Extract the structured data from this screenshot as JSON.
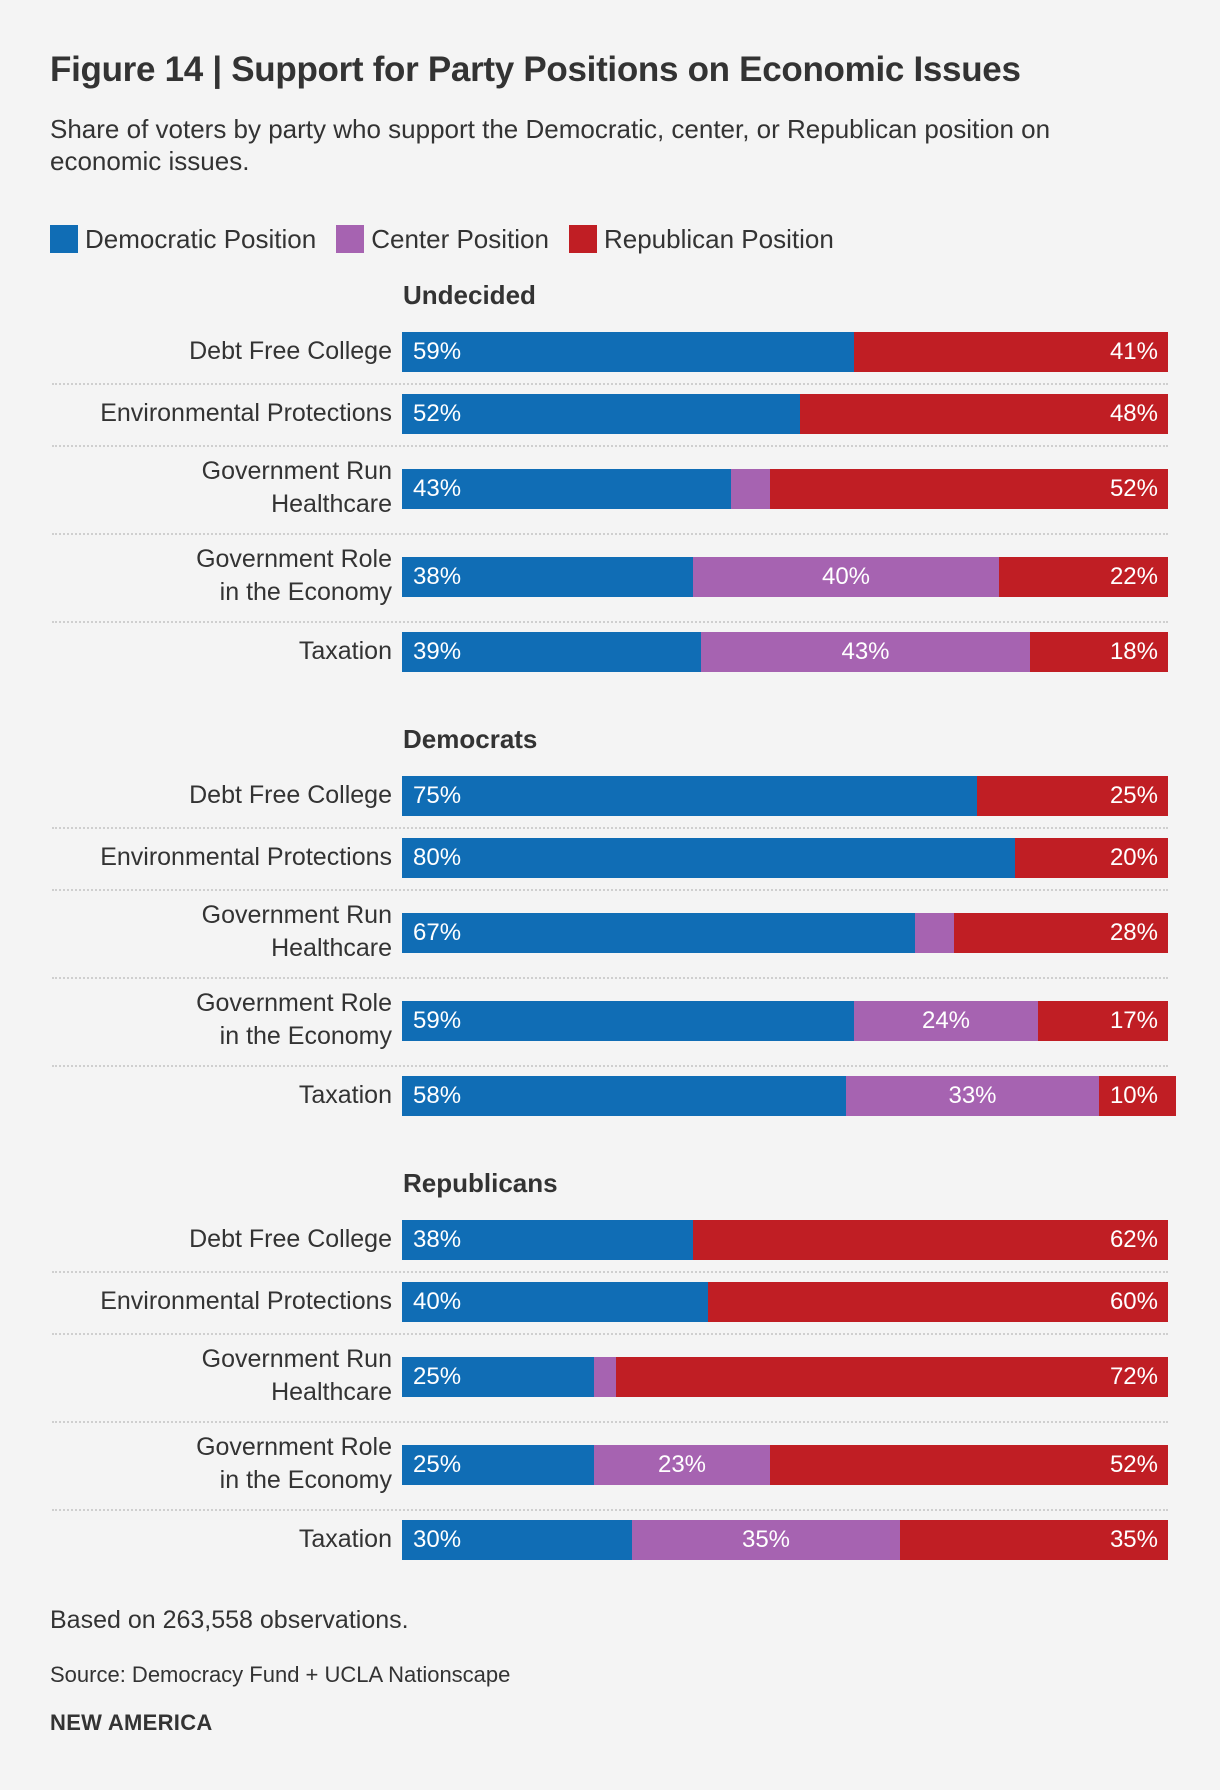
{
  "title": "Figure 14 | Support for Party Positions on Economic Issues",
  "subtitle": "Share of voters by party who support the Democratic, center, or Republican position on economic issues.",
  "legend": [
    {
      "label": "Democratic Position",
      "color": "#106db5"
    },
    {
      "label": "Center Position",
      "color": "#a663b1"
    },
    {
      "label": "Republican Position",
      "color": "#c01e24"
    }
  ],
  "chart_data": {
    "type": "bar",
    "orientation": "horizontal",
    "stacked": true,
    "normalized_to": 100,
    "title": "Figure 14 | Support for Party Positions on Economic Issues",
    "subtitle": "Share of voters by party who support the Democratic, center, or Republican position on economic issues.",
    "xlabel": "",
    "ylabel": "",
    "xlim": [
      0,
      100
    ],
    "grid": false,
    "legend_position": "top-left",
    "series_names": [
      "Democratic Position",
      "Center Position",
      "Republican Position"
    ],
    "series_colors": [
      "#106db5",
      "#a663b1",
      "#c01e24"
    ],
    "categories": [
      "Debt Free College",
      "Environmental Protections",
      "Government Run Healthcare",
      "Government Role in the Economy",
      "Taxation"
    ],
    "category_labels": [
      [
        "Debt Free College"
      ],
      [
        "Environmental Protections"
      ],
      [
        "Government Run",
        "Healthcare"
      ],
      [
        "Government Role",
        "in the Economy"
      ],
      [
        "Taxation"
      ]
    ],
    "groups": [
      {
        "name": "Undecided",
        "rows": [
          {
            "category": "Debt Free College",
            "values": [
              59,
              0,
              41
            ],
            "labels": [
              "59%",
              "",
              "41%"
            ]
          },
          {
            "category": "Environmental Protections",
            "values": [
              52,
              0,
              48
            ],
            "labels": [
              "52%",
              "",
              "48%"
            ]
          },
          {
            "category": "Government Run Healthcare",
            "values": [
              43,
              5,
              52
            ],
            "labels": [
              "43%",
              "",
              "52%"
            ]
          },
          {
            "category": "Government Role in the Economy",
            "values": [
              38,
              40,
              22
            ],
            "labels": [
              "38%",
              "40%",
              "22%"
            ]
          },
          {
            "category": "Taxation",
            "values": [
              39,
              43,
              18
            ],
            "labels": [
              "39%",
              "43%",
              "18%"
            ]
          }
        ]
      },
      {
        "name": "Democrats",
        "rows": [
          {
            "category": "Debt Free College",
            "values": [
              75,
              0,
              25
            ],
            "labels": [
              "75%",
              "",
              "25%"
            ]
          },
          {
            "category": "Environmental Protections",
            "values": [
              80,
              0,
              20
            ],
            "labels": [
              "80%",
              "",
              "20%"
            ]
          },
          {
            "category": "Government Run Healthcare",
            "values": [
              67,
              5,
              28
            ],
            "labels": [
              "67%",
              "",
              "28%"
            ]
          },
          {
            "category": "Government Role in the Economy",
            "values": [
              59,
              24,
              17
            ],
            "labels": [
              "59%",
              "24%",
              "17%"
            ]
          },
          {
            "category": "Taxation",
            "values": [
              58,
              33,
              10
            ],
            "labels": [
              "58%",
              "33%",
              "10%"
            ]
          }
        ]
      },
      {
        "name": "Republicans",
        "rows": [
          {
            "category": "Debt Free College",
            "values": [
              38,
              0,
              62
            ],
            "labels": [
              "38%",
              "",
              "62%"
            ]
          },
          {
            "category": "Environmental Protections",
            "values": [
              40,
              0,
              60
            ],
            "labels": [
              "40%",
              "",
              "60%"
            ]
          },
          {
            "category": "Government Run Healthcare",
            "values": [
              25,
              3,
              72
            ],
            "labels": [
              "25%",
              "",
              "72%"
            ]
          },
          {
            "category": "Government Role in the Economy",
            "values": [
              25,
              23,
              52
            ],
            "labels": [
              "25%",
              "23%",
              "52%"
            ]
          },
          {
            "category": "Taxation",
            "values": [
              30,
              35,
              35
            ],
            "labels": [
              "30%",
              "35%",
              "35%"
            ]
          }
        ]
      }
    ]
  },
  "footer": {
    "note": "Based on 263,558 observations.",
    "source": "Source: Democracy Fund + UCLA Nationscape",
    "brand": "NEW AMERICA"
  }
}
